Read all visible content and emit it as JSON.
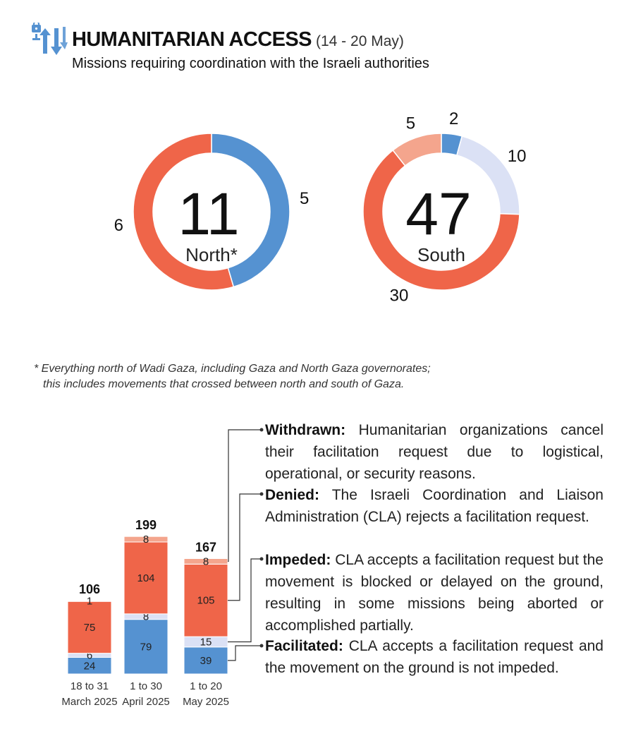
{
  "header": {
    "title": "HUMANITARIAN ACCESS",
    "dates": "(14 - 20 May)",
    "subtitle": "Missions requiring coordination with the Israeli authorities",
    "logo_icon": "access-arrows-lock-icon"
  },
  "colors": {
    "facilitated": "#5592d1",
    "impeded": "#dbe1f5",
    "denied": "#ef6549",
    "withdrawn": "#f4a58d",
    "text": "#222222"
  },
  "chart_data": [
    {
      "type": "pie",
      "variant": "donut",
      "total": 11,
      "center_label": "North*",
      "slices": [
        {
          "category": "Facilitated",
          "value": 5
        },
        {
          "category": "Impeded",
          "value": 0
        },
        {
          "category": "Denied",
          "value": 6
        },
        {
          "category": "Withdrawn",
          "value": 0
        }
      ]
    },
    {
      "type": "pie",
      "variant": "donut",
      "total": 47,
      "center_label": "South",
      "slices": [
        {
          "category": "Facilitated",
          "value": 2
        },
        {
          "category": "Impeded",
          "value": 10
        },
        {
          "category": "Denied",
          "value": 30
        },
        {
          "category": "Withdrawn",
          "value": 5
        }
      ]
    },
    {
      "type": "bar",
      "stacked": true,
      "categories": [
        [
          "18 to 31",
          "March 2025"
        ],
        [
          "1 to 30",
          "April 2025"
        ],
        [
          "1 to 20",
          "May 2025"
        ]
      ],
      "totals": [
        106,
        199,
        167
      ],
      "series": [
        {
          "name": "Facilitated",
          "values": [
            24,
            79,
            39
          ]
        },
        {
          "name": "Impeded",
          "values": [
            6,
            8,
            15
          ]
        },
        {
          "name": "Denied",
          "values": [
            75,
            104,
            105
          ]
        },
        {
          "name": "Withdrawn",
          "values": [
            1,
            8,
            8
          ]
        }
      ]
    }
  ],
  "footnote": {
    "line1": "* Everything north of Wadi Gaza, including Gaza and North Gaza governorates;",
    "line2": "this includes movements that crossed between north and south of Gaza."
  },
  "legend": {
    "withdrawn": {
      "term": "Withdrawn:",
      "text": "Humanitarian organizations cancel their facilitation request due to logistical, operational, or security reasons."
    },
    "denied": {
      "term": "Denied:",
      "text": "The Israeli Coordination and Liaison Administration (CLA) rejects a facilitation request."
    },
    "impeded": {
      "term": "Impeded:",
      "text": "CLA accepts a facilitation request but the movement is blocked or delayed on the ground, resulting in some missions being aborted or accomplished partially."
    },
    "facilitated": {
      "term": "Facilitated:",
      "text": "CLA accepts a facilitation request and the movement on the ground is not impeded."
    }
  }
}
